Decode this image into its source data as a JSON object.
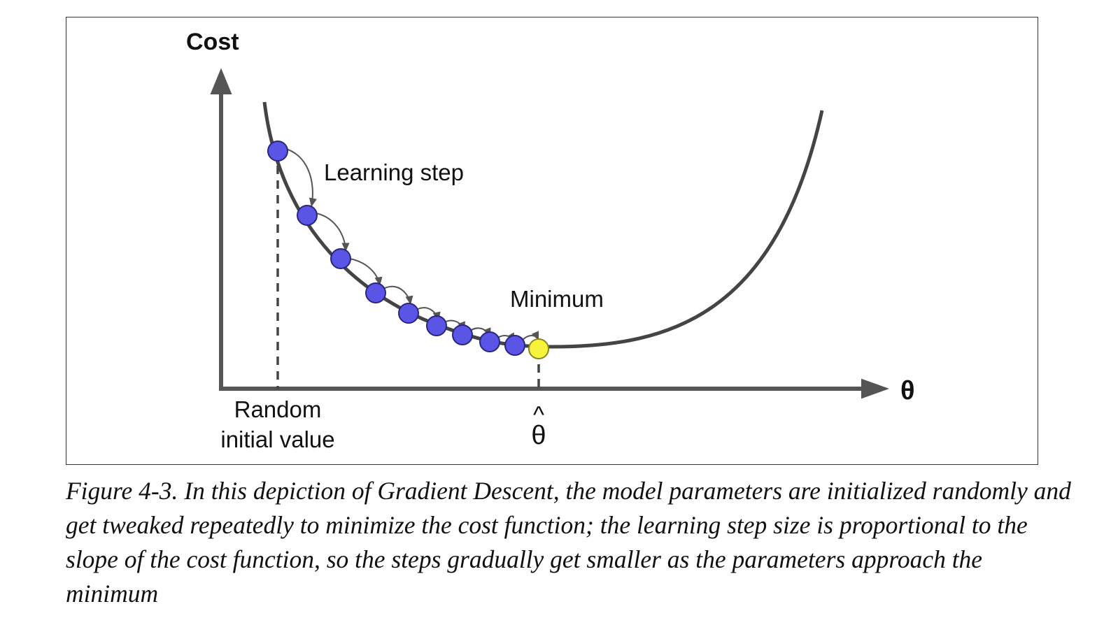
{
  "diagram": {
    "y_axis_label": "Cost",
    "x_axis_label": "θ",
    "learning_step_label": "Learning step",
    "minimum_label": "Minimum",
    "random_init_label_line1": "Random",
    "random_init_label_line2": "initial value",
    "theta_hat_label": "θ",
    "theta_hat_accent": "^",
    "colors": {
      "axis": "#555555",
      "curve": "#444444",
      "step_point_fill": "#5b55e6",
      "step_point_stroke": "#2a2580",
      "minimum_point_fill": "#f7f23c",
      "minimum_point_stroke": "#8a8620",
      "step_arrow": "#555555",
      "guide_line": "#444444"
    },
    "step_point_count": 9,
    "minimum_point_count": 1
  },
  "caption": {
    "text": "Figure 4-3. In this depiction of Gradient Descent, the model parameters are initialized randomly and get tweaked repeatedly to minimize the cost function; the learning step size is proportional to the slope of the cost function, so the steps gradually get smaller as the parameters approach the minimum"
  }
}
